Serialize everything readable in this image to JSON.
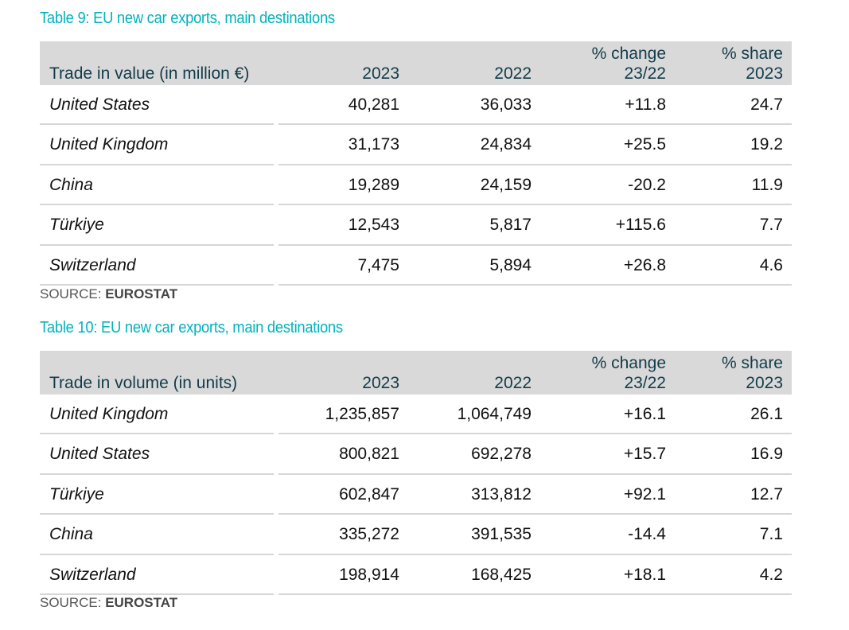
{
  "tables": [
    {
      "title": "Table 9: EU new car exports, main destinations",
      "headers": {
        "label": "Trade in value (in million €)",
        "y2023": "2023",
        "y2022": "2022",
        "change_l1": "% change",
        "change_l2": "23/22",
        "share_l1": "% share",
        "share_l2": "2023"
      },
      "rows": [
        {
          "name": "United States",
          "v2023": "40,281",
          "v2022": "36,033",
          "change": "+11.8",
          "share": "24.7"
        },
        {
          "name": "United Kingdom",
          "v2023": "31,173",
          "v2022": "24,834",
          "change": "+25.5",
          "share": "19.2"
        },
        {
          "name": "China",
          "v2023": "19,289",
          "v2022": "24,159",
          "change": "-20.2",
          "share": "11.9"
        },
        {
          "name": "Türkiye",
          "v2023": "12,543",
          "v2022": "5,817",
          "change": "+115.6",
          "share": "7.7"
        },
        {
          "name": "Switzerland",
          "v2023": "7,475",
          "v2022": "5,894",
          "change": "+26.8",
          "share": "4.6"
        }
      ],
      "source_label": "SOURCE: ",
      "source": "EUROSTAT"
    },
    {
      "title": "Table 10: EU new car exports, main destinations",
      "headers": {
        "label": "Trade in volume (in units)",
        "y2023": "2023",
        "y2022": "2022",
        "change_l1": "% change",
        "change_l2": "23/22",
        "share_l1": "% share",
        "share_l2": "2023"
      },
      "rows": [
        {
          "name": "United Kingdom",
          "v2023": "1,235,857",
          "v2022": "1,064,749",
          "change": "+16.1",
          "share": "26.1"
        },
        {
          "name": "United States",
          "v2023": "800,821",
          "v2022": "692,278",
          "change": "+15.7",
          "share": "16.9"
        },
        {
          "name": "Türkiye",
          "v2023": "602,847",
          "v2022": "313,812",
          "change": "+92.1",
          "share": "12.7"
        },
        {
          "name": "China",
          "v2023": "335,272",
          "v2022": "391,535",
          "change": "-14.4",
          "share": "7.1"
        },
        {
          "name": "Switzerland",
          "v2023": "198,914",
          "v2022": "168,425",
          "change": "+18.1",
          "share": "4.2"
        }
      ],
      "source_label": "SOURCE: ",
      "source": "EUROSTAT"
    }
  ]
}
